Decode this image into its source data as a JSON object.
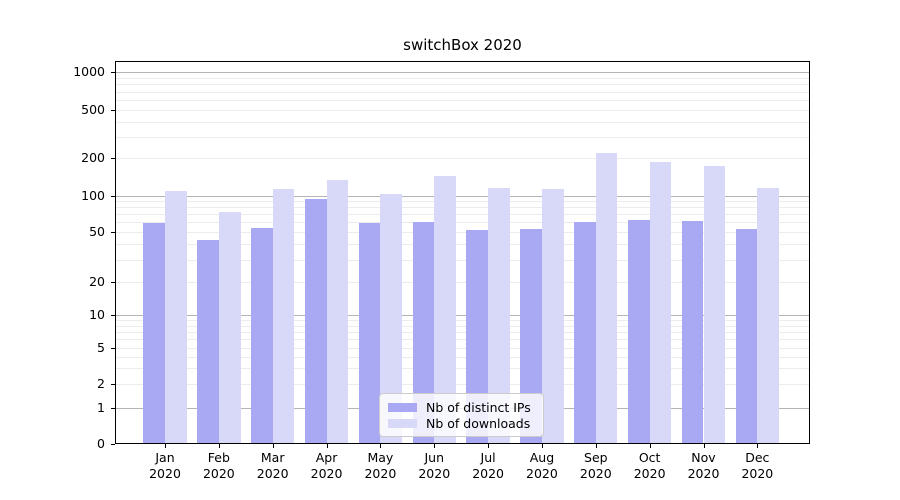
{
  "title": "switchBox 2020",
  "chart_data": {
    "type": "bar",
    "title": "switchBox 2020",
    "categories": [
      "Jan",
      "Feb",
      "Mar",
      "Apr",
      "May",
      "Jun",
      "Jul",
      "Aug",
      "Sep",
      "Oct",
      "Nov",
      "Dec"
    ],
    "category_year": "2020",
    "x_tick_labels": [
      "Jan\n2020",
      "Feb\n2020",
      "Mar\n2020",
      "Apr\n2020",
      "May\n2020",
      "Jun\n2020",
      "Jul\n2020",
      "Aug\n2020",
      "Sep\n2020",
      "Oct\n2020",
      "Nov\n2020",
      "Dec\n2020"
    ],
    "series": [
      {
        "name": "Nb of distinct IPs",
        "color": "#a9a9f3",
        "values": [
          59,
          43,
          54,
          94,
          59,
          60,
          52,
          53,
          60,
          63,
          61,
          53
        ]
      },
      {
        "name": "Nb of downloads",
        "color": "#d8d8f8",
        "values": [
          110,
          73,
          114,
          134,
          103,
          145,
          116,
          114,
          220,
          187,
          175,
          115
        ]
      }
    ],
    "yscale": "symlog",
    "y_tick_values": [
      0,
      1,
      2,
      5,
      10,
      20,
      50,
      100,
      200,
      500,
      1000
    ],
    "y_tick_labels": [
      "0",
      "1",
      "2",
      "5",
      "10",
      "20",
      "50",
      "100",
      "200",
      "500",
      "1000"
    ],
    "y_minor_values": [
      3,
      4,
      6,
      7,
      8,
      9,
      30,
      40,
      60,
      70,
      80,
      90,
      300,
      400,
      600,
      700,
      800,
      900
    ],
    "ylim": [
      0,
      1300
    ],
    "grid": true,
    "legend_position": "inside-bottom-center"
  },
  "legend": {
    "items": [
      {
        "label": "Nb of distinct IPs",
        "color": "#a9a9f3"
      },
      {
        "label": "Nb of downloads",
        "color": "#d8d8f8"
      }
    ]
  },
  "colors": {
    "bar_distinct_ips": "#a9a9f3",
    "bar_downloads": "#d8d8f8",
    "grid_major": "#b4b4b4",
    "grid_minor": "#ececec",
    "spine": "#000000",
    "legend_border": "#cccccc",
    "background": "#ffffff"
  }
}
